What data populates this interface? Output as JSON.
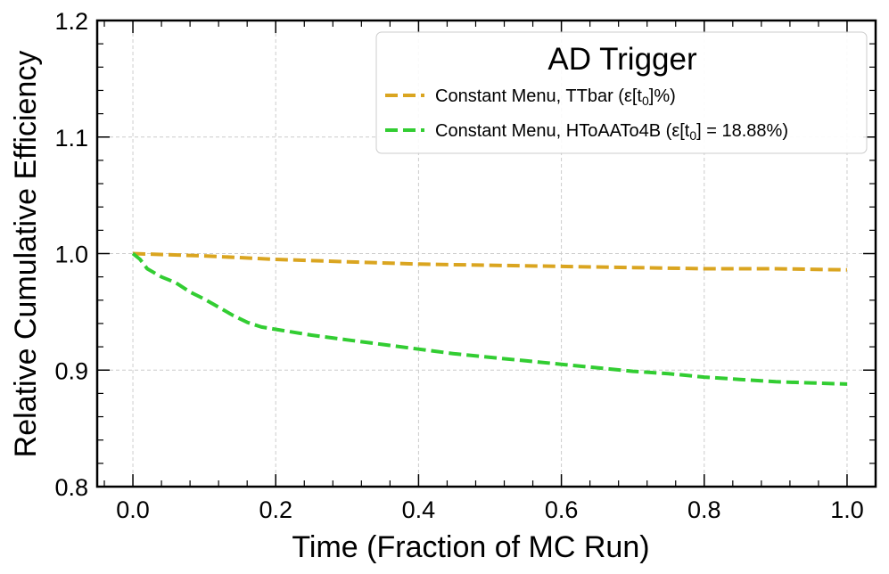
{
  "chart_data": {
    "type": "line",
    "title": "",
    "xlabel": "Time (Fraction of MC Run)",
    "ylabel": "Relative Cumulative Efficiency",
    "xlim": [
      -0.05,
      1.04
    ],
    "ylim": [
      0.8,
      1.2
    ],
    "xticks": [
      0.0,
      0.2,
      0.4,
      0.6,
      0.8,
      1.0
    ],
    "xtick_labels": [
      "0.0",
      "0.2",
      "0.4",
      "0.6",
      "0.8",
      "1.0"
    ],
    "yticks": [
      0.8,
      0.9,
      1.0,
      1.1,
      1.2
    ],
    "ytick_labels": [
      "0.8",
      "0.9",
      "1.0",
      "1.1",
      "1.2"
    ],
    "grid": true,
    "legend": {
      "title": "AD Trigger",
      "position": "top-right"
    },
    "series": [
      {
        "name": "Constant Menu, TTbar",
        "legend_label_main": "Constant Menu, TTbar (ε[t",
        "legend_label_sub": "0",
        "legend_label_end": "]%)",
        "color": "#DAA520",
        "linestyle": "dashed",
        "x": [
          0.0,
          0.05,
          0.1,
          0.2,
          0.3,
          0.4,
          0.5,
          0.6,
          0.7,
          0.8,
          0.9,
          1.0
        ],
        "y": [
          1.0,
          0.999,
          0.998,
          0.995,
          0.993,
          0.991,
          0.99,
          0.989,
          0.988,
          0.987,
          0.987,
          0.986
        ]
      },
      {
        "name": "Constant Menu, HToAATo4B",
        "legend_label_main": "Constant Menu, HToAATo4B (ε[t",
        "legend_label_sub": "0",
        "legend_label_end": "] = 18.88%)",
        "color": "#32CD32",
        "linestyle": "dashed",
        "x": [
          0.0,
          0.01,
          0.02,
          0.04,
          0.06,
          0.08,
          0.1,
          0.12,
          0.14,
          0.16,
          0.18,
          0.2,
          0.25,
          0.3,
          0.35,
          0.4,
          0.45,
          0.5,
          0.55,
          0.6,
          0.65,
          0.7,
          0.75,
          0.8,
          0.85,
          0.9,
          0.95,
          1.0
        ],
        "y": [
          1.0,
          0.995,
          0.987,
          0.98,
          0.975,
          0.967,
          0.961,
          0.954,
          0.947,
          0.941,
          0.937,
          0.935,
          0.93,
          0.926,
          0.922,
          0.918,
          0.914,
          0.911,
          0.908,
          0.905,
          0.902,
          0.899,
          0.897,
          0.894,
          0.892,
          0.89,
          0.889,
          0.888
        ]
      }
    ]
  }
}
